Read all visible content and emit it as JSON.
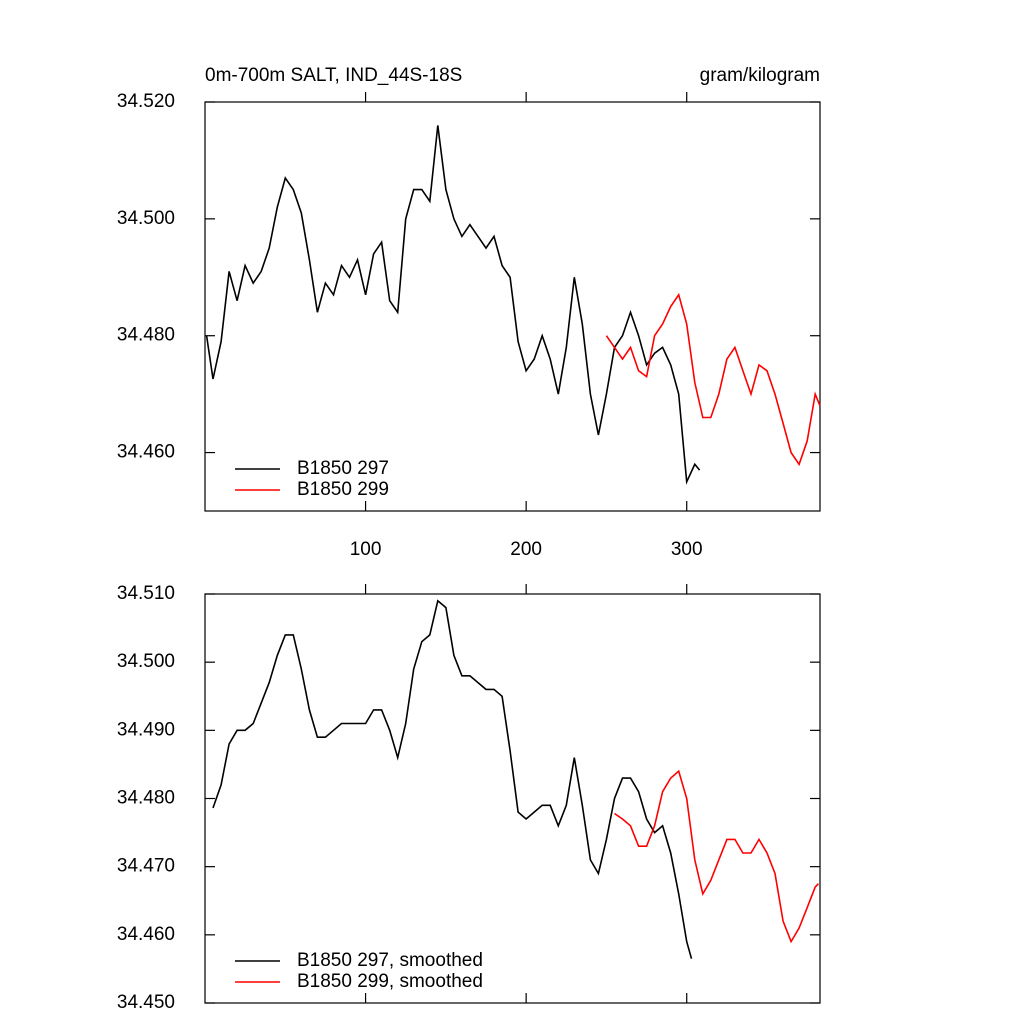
{
  "chart_data": [
    {
      "type": "line",
      "title": "0m-700m SALT, IND_44S-18S",
      "units": "gram/kilogram",
      "xlim": [
        0,
        383
      ],
      "xticks": [
        100,
        200,
        300
      ],
      "ylim": [
        34.45,
        34.52
      ],
      "yticks": [
        {
          "value": 34.46,
          "label": "34.460"
        },
        {
          "value": 34.48,
          "label": "34.480"
        },
        {
          "value": 34.5,
          "label": "34.500"
        },
        {
          "value": 34.52,
          "label": "34.520"
        }
      ],
      "legend": "lower left",
      "series": [
        {
          "name": "B1850 297",
          "color": "#000000",
          "x": [
            1,
            5,
            10,
            15,
            20,
            25,
            30,
            35,
            40,
            45,
            50,
            55,
            60,
            65,
            70,
            75,
            80,
            85,
            90,
            95,
            100,
            105,
            110,
            115,
            120,
            125,
            130,
            135,
            140,
            145,
            150,
            155,
            160,
            165,
            170,
            175,
            180,
            185,
            190,
            195,
            200,
            205,
            210,
            215,
            220,
            225,
            230,
            235,
            240,
            245,
            250,
            255,
            260,
            265,
            270,
            275,
            280,
            285,
            290,
            295,
            300,
            305,
            308
          ],
          "values": [
            34.48,
            34.4726,
            34.479,
            34.491,
            34.486,
            34.492,
            34.489,
            34.491,
            34.495,
            34.502,
            34.507,
            34.505,
            34.501,
            34.493,
            34.484,
            34.489,
            34.487,
            34.492,
            34.49,
            34.493,
            34.487,
            34.494,
            34.496,
            34.486,
            34.484,
            34.5,
            34.505,
            34.505,
            34.503,
            34.516,
            34.505,
            34.5,
            34.497,
            34.499,
            34.497,
            34.495,
            34.497,
            34.492,
            34.49,
            34.479,
            34.474,
            34.476,
            34.48,
            34.476,
            34.47,
            34.478,
            34.49,
            34.482,
            34.47,
            34.463,
            34.47,
            34.478,
            34.48,
            34.484,
            34.48,
            34.475,
            34.477,
            34.478,
            34.475,
            34.47,
            34.455,
            34.458,
            34.457
          ]
        },
        {
          "name": "B1850 299",
          "color": "#ff0000",
          "x": [
            250,
            255,
            260,
            265,
            270,
            275,
            280,
            285,
            290,
            295,
            300,
            305,
            310,
            315,
            320,
            325,
            330,
            335,
            340,
            345,
            350,
            355,
            360,
            365,
            370,
            375,
            380,
            383
          ],
          "values": [
            34.48,
            34.478,
            34.476,
            34.478,
            34.474,
            34.473,
            34.48,
            34.482,
            34.485,
            34.487,
            34.482,
            34.472,
            34.466,
            34.466,
            34.47,
            34.476,
            34.478,
            34.474,
            34.47,
            34.475,
            34.474,
            34.47,
            34.465,
            34.46,
            34.458,
            34.462,
            34.47,
            34.468
          ]
        }
      ]
    },
    {
      "type": "line",
      "xlim": [
        0,
        383
      ],
      "xticks": [
        100,
        200,
        300
      ],
      "ylim": [
        34.45,
        34.51
      ],
      "yticks": [
        {
          "value": 34.45,
          "label": "34.450"
        },
        {
          "value": 34.46,
          "label": "34.460"
        },
        {
          "value": 34.47,
          "label": "34.470"
        },
        {
          "value": 34.48,
          "label": "34.480"
        },
        {
          "value": 34.49,
          "label": "34.490"
        },
        {
          "value": 34.5,
          "label": "34.500"
        },
        {
          "value": 34.51,
          "label": "34.510"
        }
      ],
      "legend": "lower left",
      "series": [
        {
          "name": "B1850 297, smoothed",
          "color": "#000000",
          "x": [
            5,
            10,
            15,
            20,
            25,
            30,
            35,
            40,
            45,
            50,
            55,
            60,
            65,
            70,
            75,
            80,
            85,
            90,
            95,
            100,
            105,
            110,
            115,
            120,
            125,
            130,
            135,
            140,
            145,
            150,
            155,
            160,
            165,
            170,
            175,
            180,
            185,
            190,
            195,
            200,
            205,
            210,
            215,
            220,
            225,
            230,
            235,
            240,
            245,
            250,
            255,
            260,
            265,
            270,
            275,
            280,
            285,
            290,
            295,
            300,
            303
          ],
          "values": [
            34.4786,
            34.482,
            34.488,
            34.49,
            34.49,
            34.491,
            34.494,
            34.497,
            34.501,
            34.504,
            34.504,
            34.499,
            34.493,
            34.489,
            34.489,
            34.49,
            34.491,
            34.491,
            34.491,
            34.491,
            34.493,
            34.493,
            34.49,
            34.486,
            34.491,
            34.499,
            34.503,
            34.504,
            34.509,
            34.508,
            34.501,
            34.498,
            34.498,
            34.497,
            34.496,
            34.496,
            34.495,
            34.487,
            34.478,
            34.477,
            34.478,
            34.479,
            34.479,
            34.476,
            34.479,
            34.486,
            34.479,
            34.471,
            34.469,
            34.474,
            34.48,
            34.483,
            34.483,
            34.481,
            34.477,
            34.475,
            34.476,
            34.472,
            34.466,
            34.459,
            34.4565
          ]
        },
        {
          "name": "B1850 299, smoothed",
          "color": "#ff0000",
          "x": [
            255,
            260,
            265,
            270,
            275,
            280,
            285,
            290,
            295,
            300,
            305,
            310,
            315,
            320,
            325,
            330,
            335,
            340,
            345,
            350,
            355,
            360,
            365,
            370,
            375,
            380,
            382
          ],
          "values": [
            34.4778,
            34.477,
            34.476,
            34.473,
            34.473,
            34.476,
            34.481,
            34.483,
            34.484,
            34.48,
            34.471,
            34.466,
            34.468,
            34.471,
            34.474,
            34.474,
            34.472,
            34.472,
            34.474,
            34.472,
            34.469,
            34.462,
            34.459,
            34.461,
            34.464,
            34.467,
            34.4675
          ]
        }
      ]
    }
  ]
}
